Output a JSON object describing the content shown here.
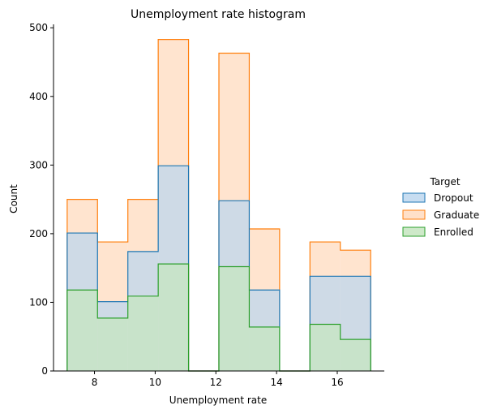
{
  "chart_data": {
    "type": "histogram",
    "title": "Unemployment rate histogram",
    "xlabel": "Unemployment rate",
    "ylabel": "Count",
    "xlim": [
      6.65,
      17.55
    ],
    "ylim": [
      0,
      505
    ],
    "x_ticks": [
      8,
      10,
      12,
      14,
      16
    ],
    "y_ticks": [
      0,
      100,
      200,
      300,
      400,
      500
    ],
    "grid": false,
    "legend": {
      "title": "Target",
      "placement": "right"
    },
    "bin_edges": [
      7.1,
      8.1,
      9.1,
      10.1,
      11.1,
      12.1,
      13.1,
      14.1,
      15.1,
      16.1,
      17.1
    ],
    "series": [
      {
        "name": "Dropout",
        "color": "#1f77b4",
        "fill": "#bdd7ee",
        "values": [
          201,
          101,
          174,
          299,
          0,
          248,
          118,
          0,
          138,
          138
        ]
      },
      {
        "name": "Graduate",
        "color": "#ff7f0e",
        "fill": "#ffdbbf",
        "values": [
          250,
          188,
          250,
          483,
          0,
          463,
          207,
          0,
          188,
          176
        ]
      },
      {
        "name": "Enrolled",
        "color": "#2ca02c",
        "fill": "#c6e5c0",
        "values": [
          118,
          77,
          109,
          156,
          0,
          152,
          64,
          0,
          68,
          46
        ]
      }
    ]
  }
}
